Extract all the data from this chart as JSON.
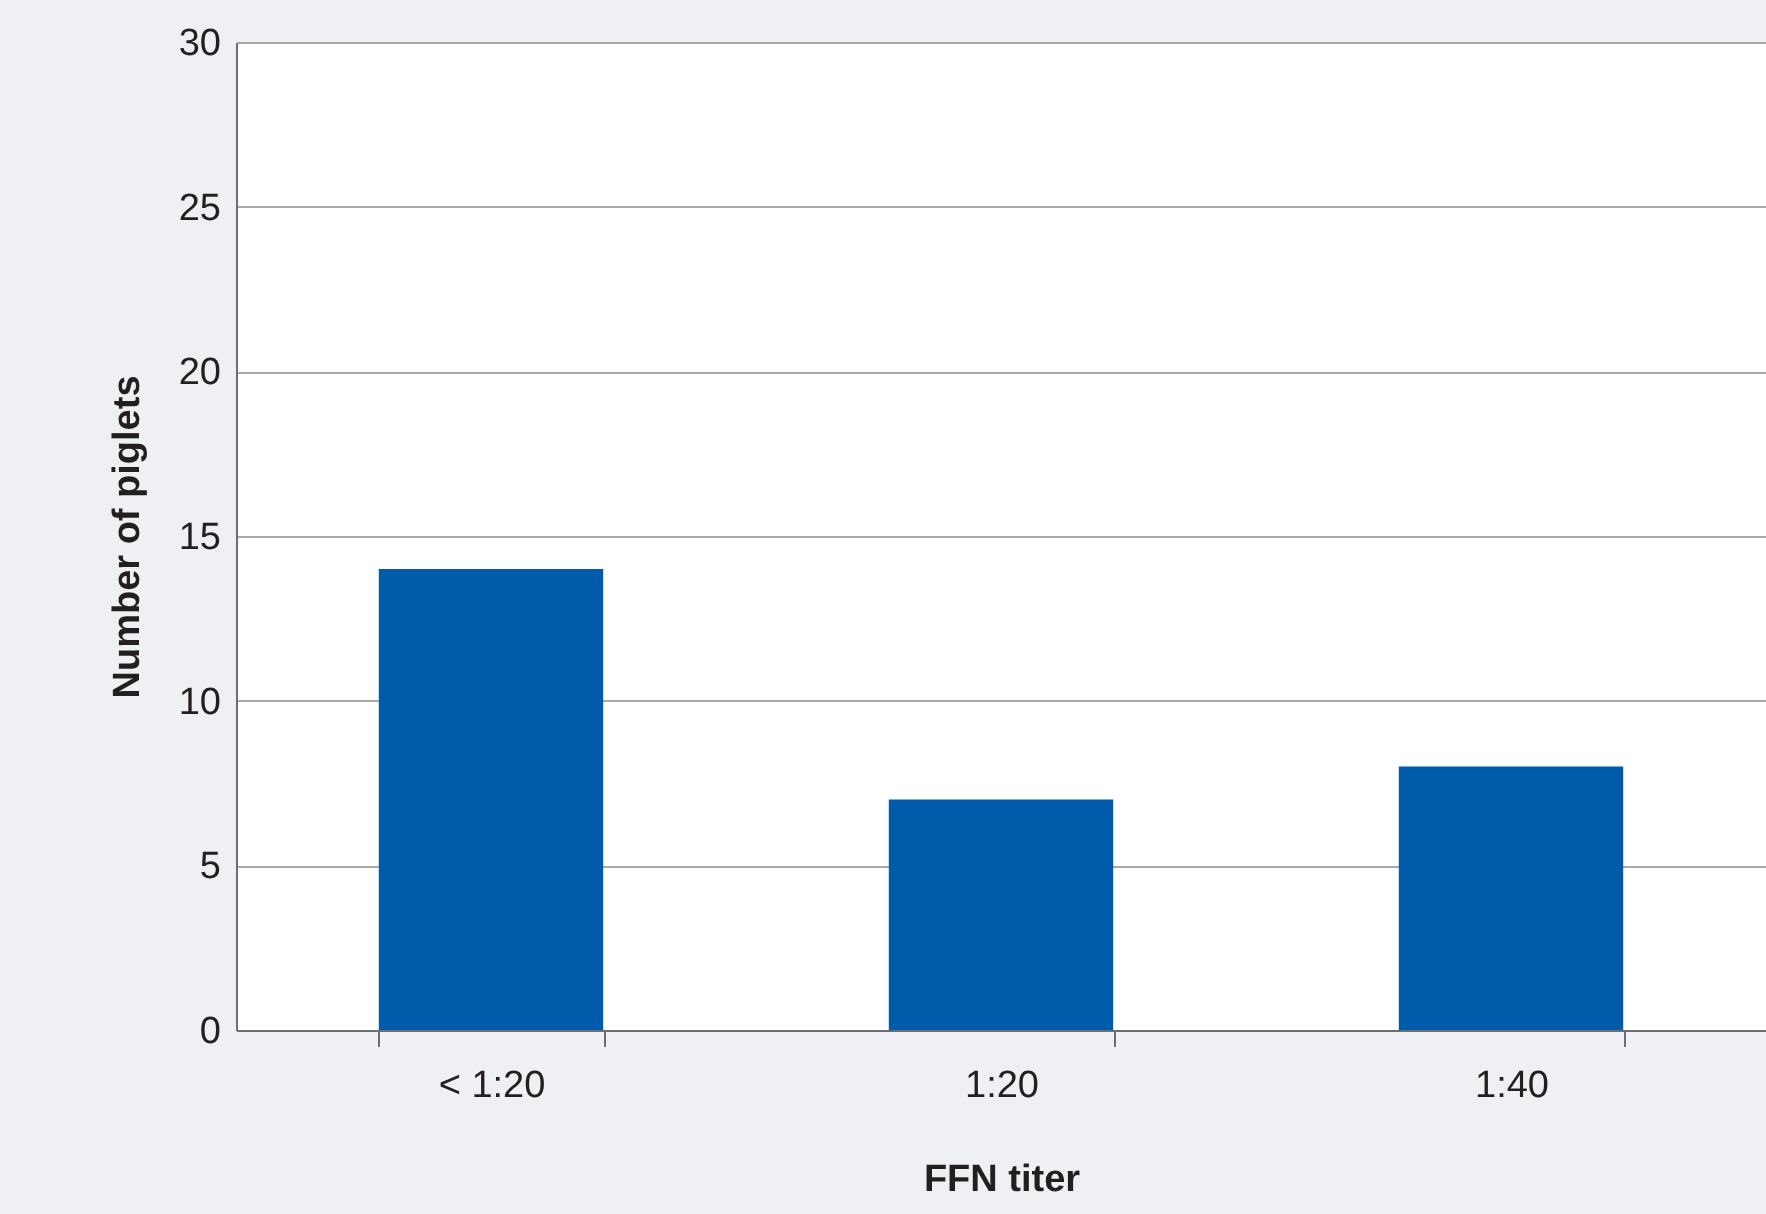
{
  "chart_data": {
    "type": "bar",
    "xlabel": "FFN titer",
    "ylabel": "Number of piglets",
    "categories": [
      "< 1:20",
      "1:20",
      "1:40"
    ],
    "values": [
      14,
      7,
      8
    ],
    "color": "#005bab",
    "ylim": [
      0,
      30
    ],
    "yticks": [
      0,
      5,
      10,
      15,
      20,
      25,
      30
    ],
    "grid": "y"
  }
}
